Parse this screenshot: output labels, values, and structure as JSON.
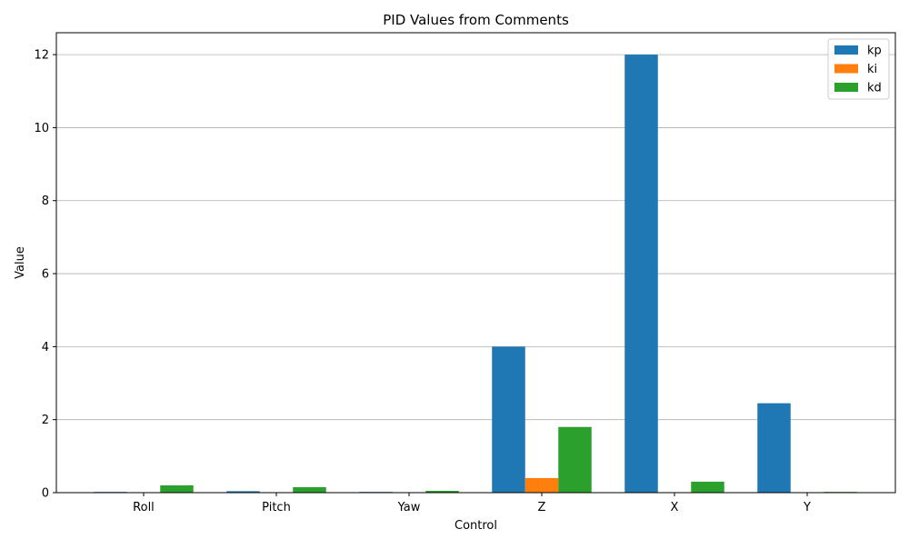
{
  "chart_data": {
    "type": "bar",
    "title": "PID Values from Comments",
    "xlabel": "Control",
    "ylabel": "Value",
    "categories": [
      "Roll",
      "Pitch",
      "Yaw",
      "Z",
      "X",
      "Y"
    ],
    "ylim": [
      0,
      12.6
    ],
    "yticks": [
      0,
      2,
      4,
      6,
      8,
      10,
      12
    ],
    "grid": "y",
    "legend_position": "top-right",
    "series": [
      {
        "name": "kp",
        "color": "#1f77b4",
        "values": [
          0.02,
          0.04,
          0.02,
          4.0,
          12.0,
          2.45
        ]
      },
      {
        "name": "ki",
        "color": "#ff7f0e",
        "values": [
          0.01,
          0.01,
          0.01,
          0.4,
          0.0,
          0.0
        ]
      },
      {
        "name": "kd",
        "color": "#2ca02c",
        "values": [
          0.2,
          0.15,
          0.05,
          1.8,
          0.3,
          0.02
        ]
      }
    ]
  }
}
